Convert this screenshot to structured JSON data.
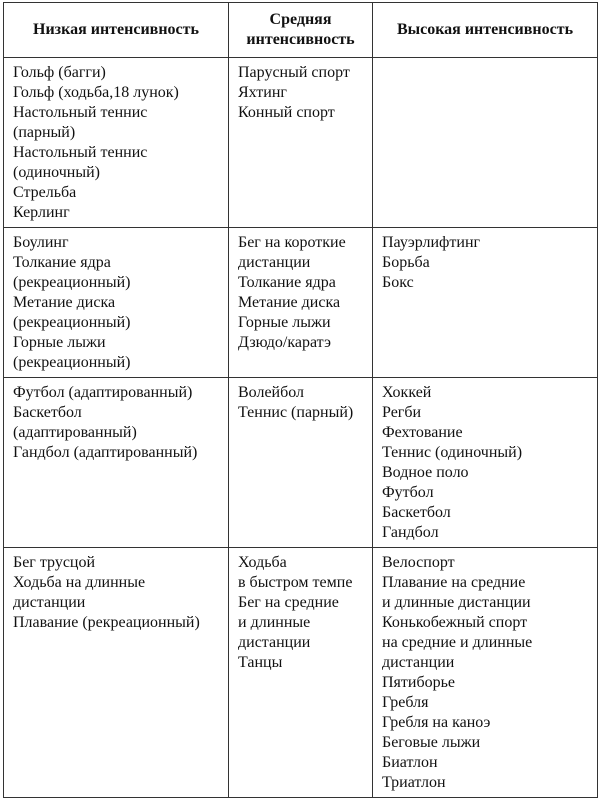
{
  "table": {
    "headers": [
      "Низкая интенсивность",
      "Средняя интенсивность",
      "Высокая интенсивность"
    ],
    "rows": [
      [
        [
          "Гольф (багги)",
          "Гольф (ходьба,18 лунок)",
          "Настольный теннис",
          "(парный)",
          "Настольный теннис",
          "(одиночный)",
          "Стрельба",
          "Керлинг"
        ],
        [
          "Парусный спорт",
          "Яхтинг",
          "Конный спорт"
        ],
        []
      ],
      [
        [
          "Боулинг",
          "Толкание ядра",
          "(рекреационный)",
          "Метание диска",
          "(рекреационный)",
          "Горные лыжи",
          "(рекреационный)"
        ],
        [
          "Бег на короткие",
          "дистанции",
          "Толкание ядра",
          "Метание диска",
          "Горные лыжи",
          "Дзюдо/каратэ"
        ],
        [
          "Пауэрлифтинг",
          "Борьба",
          "Бокс"
        ]
      ],
      [
        [
          "Футбол (адаптированный)",
          "Баскетбол",
          "(адаптированный)",
          "Гандбол (адаптированный)"
        ],
        [
          "Волейбол",
          "Теннис (парный)"
        ],
        [
          "Хоккей",
          "Регби",
          "Фехтование",
          "Теннис (одиночный)",
          "Водное поло",
          "Футбол",
          "Баскетбол",
          "Гандбол"
        ]
      ],
      [
        [
          "Бег трусцой",
          "Ходьба на длинные",
          "дистанции",
          "Плавание (рекреационный)"
        ],
        [
          "Ходьба",
          "в быстром темпе",
          "Бег на средние",
          "и длинные",
          "дистанции",
          "Танцы"
        ],
        [
          "Велоспорт",
          "Плавание на средние",
          "и длинные дистанции",
          "Конькобежный спорт",
          "на средние и длинные",
          "дистанции",
          "Пятиборье",
          "Гребля",
          "Гребля на каноэ",
          "Беговые лыжи",
          "Биатлон",
          "Триатлон"
        ]
      ]
    ]
  }
}
